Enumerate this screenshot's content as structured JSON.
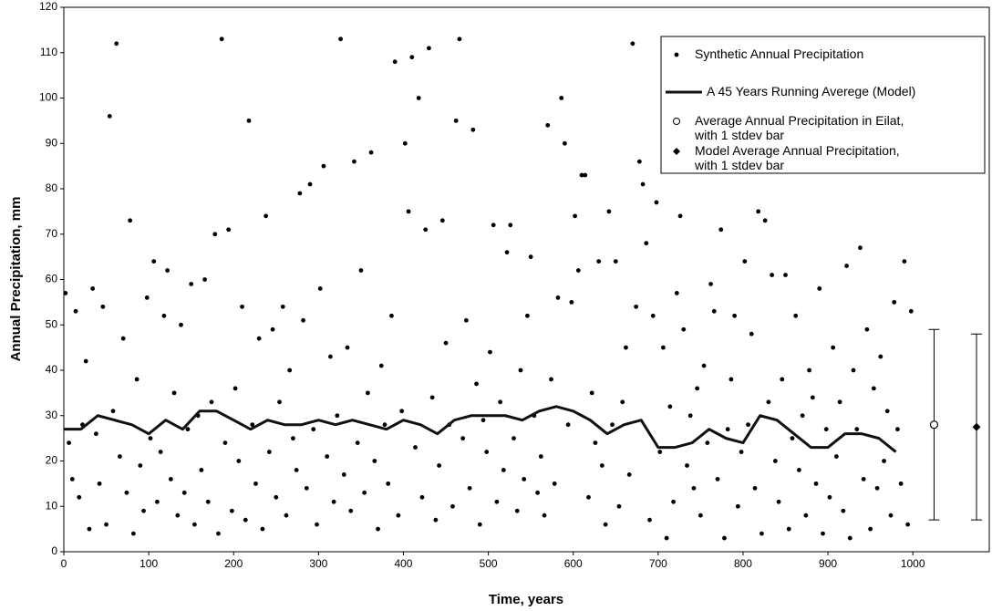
{
  "chart_data": {
    "type": "scatter",
    "xlabel": "Time, years",
    "ylabel": "Annual Precipitation, mm",
    "xlim": [
      0,
      1090
    ],
    "ylim": [
      0,
      120
    ],
    "xticks": [
      0,
      100,
      200,
      300,
      400,
      500,
      600,
      700,
      800,
      900,
      1000
    ],
    "yticks": [
      0,
      10,
      20,
      30,
      40,
      50,
      60,
      70,
      80,
      90,
      100,
      110,
      120
    ],
    "series": [
      {
        "name": "Synthetic Annual Precipitation",
        "kind": "points",
        "color": "#000000",
        "x": [
          2,
          6,
          10,
          14,
          18,
          22,
          26,
          30,
          34,
          38,
          42,
          46,
          50,
          54,
          58,
          62,
          66,
          70,
          74,
          78,
          82,
          86,
          90,
          94,
          98,
          102,
          106,
          110,
          114,
          118,
          122,
          126,
          130,
          134,
          138,
          142,
          146,
          150,
          154,
          158,
          162,
          166,
          170,
          174,
          178,
          182,
          186,
          190,
          194,
          198,
          202,
          206,
          210,
          214,
          218,
          222,
          226,
          230,
          234,
          238,
          242,
          246,
          250,
          254,
          258,
          262,
          266,
          270,
          274,
          278,
          282,
          286,
          290,
          294,
          298,
          302,
          306,
          310,
          314,
          318,
          322,
          326,
          330,
          334,
          338,
          342,
          346,
          350,
          354,
          358,
          362,
          366,
          370,
          374,
          378,
          382,
          386,
          390,
          394,
          398,
          402,
          406,
          410,
          414,
          418,
          422,
          426,
          430,
          434,
          438,
          442,
          446,
          450,
          454,
          458,
          462,
          466,
          470,
          474,
          478,
          482,
          486,
          490,
          494,
          498,
          502,
          506,
          510,
          514,
          518,
          522,
          526,
          530,
          534,
          538,
          542,
          546,
          550,
          554,
          558,
          562,
          566,
          570,
          574,
          578,
          582,
          586,
          590,
          594,
          598,
          602,
          606,
          610,
          614,
          618,
          622,
          626,
          630,
          634,
          638,
          642,
          646,
          650,
          654,
          658,
          662,
          666,
          670,
          674,
          678,
          682,
          686,
          690,
          694,
          698,
          702,
          706,
          710,
          714,
          718,
          722,
          726,
          730,
          734,
          738,
          742,
          746,
          750,
          754,
          758,
          762,
          766,
          770,
          774,
          778,
          782,
          786,
          790,
          794,
          798,
          802,
          806,
          810,
          814,
          818,
          822,
          826,
          830,
          834,
          838,
          842,
          846,
          850,
          854,
          858,
          862,
          866,
          870,
          874,
          878,
          882,
          886,
          890,
          894,
          898,
          902,
          906,
          910,
          914,
          918,
          922,
          926,
          930,
          934,
          938,
          942,
          946,
          950,
          954,
          958,
          962,
          966,
          970,
          974,
          978,
          982,
          986,
          990,
          994,
          998
        ],
        "values": [
          57,
          24,
          16,
          53,
          12,
          28,
          42,
          5,
          58,
          26,
          15,
          54,
          6,
          96,
          31,
          112,
          21,
          47,
          13,
          73,
          4,
          38,
          19,
          9,
          56,
          25,
          64,
          11,
          22,
          52,
          62,
          16,
          35,
          8,
          50,
          13,
          27,
          59,
          6,
          30,
          18,
          60,
          11,
          33,
          70,
          4,
          113,
          24,
          71,
          9,
          36,
          20,
          54,
          7,
          95,
          28,
          15,
          47,
          5,
          74,
          22,
          49,
          12,
          33,
          54,
          8,
          40,
          25,
          18,
          79,
          51,
          14,
          81,
          27,
          6,
          58,
          85,
          21,
          43,
          11,
          30,
          113,
          17,
          45,
          9,
          86,
          24,
          62,
          13,
          35,
          88,
          20,
          5,
          41,
          28,
          15,
          52,
          108,
          8,
          31,
          90,
          75,
          109,
          23,
          100,
          12,
          71,
          111,
          34,
          7,
          19,
          73,
          46,
          28,
          10,
          95,
          113,
          25,
          51,
          14,
          93,
          37,
          6,
          29,
          22,
          44,
          72,
          11,
          33,
          18,
          66,
          72,
          25,
          9,
          40,
          16,
          52,
          65,
          30,
          13,
          21,
          8,
          94,
          38,
          15,
          56,
          100,
          90,
          28,
          55,
          74,
          62,
          83,
          83,
          12,
          35,
          24,
          64,
          19,
          6,
          75,
          28,
          64,
          10,
          33,
          45,
          17,
          112,
          54,
          86,
          81,
          68,
          7,
          52,
          77,
          22,
          45,
          3,
          32,
          11,
          57,
          74,
          49,
          19,
          30,
          14,
          36,
          8,
          41,
          24,
          59,
          53,
          16,
          71,
          3,
          27,
          38,
          52,
          10,
          22,
          64,
          28,
          48,
          14,
          75,
          4,
          73,
          33,
          61,
          20,
          11,
          38,
          61,
          5,
          25,
          52,
          18,
          30,
          8,
          40,
          34,
          15,
          58,
          4,
          27,
          12,
          45,
          21,
          33,
          9,
          63,
          3,
          40,
          27,
          67,
          16,
          49,
          5,
          36,
          14,
          43,
          20,
          31,
          8,
          55,
          27,
          15,
          64,
          6,
          53
        ]
      },
      {
        "name": "A 45 Years Running Averege (Model)",
        "kind": "line",
        "color": "#111111",
        "x": [
          0,
          20,
          40,
          60,
          80,
          100,
          120,
          140,
          160,
          180,
          200,
          220,
          240,
          260,
          280,
          300,
          320,
          340,
          360,
          380,
          400,
          420,
          440,
          460,
          480,
          500,
          520,
          540,
          560,
          580,
          600,
          620,
          640,
          660,
          680,
          700,
          720,
          740,
          760,
          780,
          800,
          820,
          840,
          860,
          880,
          900,
          920,
          940,
          960,
          980
        ],
        "values": [
          27,
          27,
          30,
          29,
          28,
          26,
          29,
          27,
          31,
          31,
          29,
          27,
          29,
          28,
          28,
          29,
          28,
          29,
          28,
          27,
          29,
          28,
          26,
          29,
          30,
          30,
          30,
          29,
          31,
          32,
          31,
          29,
          26,
          28,
          29,
          23,
          23,
          24,
          27,
          25,
          24,
          30,
          29,
          26,
          23,
          23,
          26,
          26,
          25,
          22
        ]
      },
      {
        "name": "Average Annual Precipitation in Eilat,\nwith 1 stdev bar",
        "kind": "open-circle",
        "color": "#000000",
        "x": [
          1025
        ],
        "values": [
          28
        ],
        "error": [
          21
        ]
      },
      {
        "name": "Model Average Annual Precipitation,\nwith 1 stdev bar",
        "kind": "diamond",
        "color": "#000000",
        "x": [
          1075
        ],
        "values": [
          27.5
        ],
        "error": [
          20.5
        ]
      }
    ]
  }
}
